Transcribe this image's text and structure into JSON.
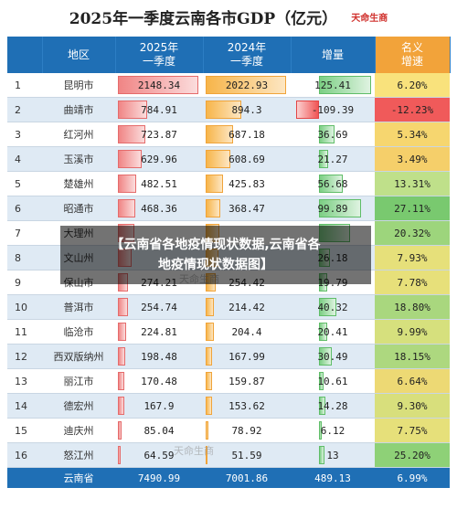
{
  "title": "2025年一季度云南各市GDP（亿元）",
  "brand": "天命生商",
  "watermark": "天命生商",
  "headers": [
    "地区",
    "2025年\n一季度",
    "2024年\n一季度",
    "增量",
    "名义\n增速"
  ],
  "rows": [
    {
      "rank": "1",
      "city": "昆明市",
      "v2025": "2148.34",
      "v2024": "2022.93",
      "inc": "125.41",
      "rate": "6.20%"
    },
    {
      "rank": "2",
      "city": "曲靖市",
      "v2025": "784.91",
      "v2024": "894.3",
      "inc": "-109.39",
      "rate": "-12.23%"
    },
    {
      "rank": "3",
      "city": "红河州",
      "v2025": "723.87",
      "v2024": "687.18",
      "inc": "36.69",
      "rate": "5.34%"
    },
    {
      "rank": "4",
      "city": "玉溪市",
      "v2025": "629.96",
      "v2024": "608.69",
      "inc": "21.27",
      "rate": "3.49%"
    },
    {
      "rank": "5",
      "city": "楚雄州",
      "v2025": "482.51",
      "v2024": "425.83",
      "inc": "56.68",
      "rate": "13.31%"
    },
    {
      "rank": "6",
      "city": "昭通市",
      "v2025": "468.36",
      "v2024": "368.47",
      "inc": "99.89",
      "rate": "27.11%"
    },
    {
      "rank": "7",
      "city": "大理州",
      "v2025": "",
      "v2024": "",
      "inc": "",
      "rate": "20.32%"
    },
    {
      "rank": "8",
      "city": "文山州",
      "v2025": "",
      "v2024": "",
      "inc": "26.18",
      "rate": "7.93%"
    },
    {
      "rank": "9",
      "city": "保山市",
      "v2025": "274.21",
      "v2024": "254.42",
      "inc": "19.79",
      "rate": "7.78%"
    },
    {
      "rank": "10",
      "city": "普洱市",
      "v2025": "254.74",
      "v2024": "214.42",
      "inc": "40.32",
      "rate": "18.80%"
    },
    {
      "rank": "11",
      "city": "临沧市",
      "v2025": "224.81",
      "v2024": "204.4",
      "inc": "20.41",
      "rate": "9.99%"
    },
    {
      "rank": "12",
      "city": "西双版纳州",
      "v2025": "198.48",
      "v2024": "167.99",
      "inc": "30.49",
      "rate": "18.15%"
    },
    {
      "rank": "13",
      "city": "丽江市",
      "v2025": "170.48",
      "v2024": "159.87",
      "inc": "10.61",
      "rate": "6.64%"
    },
    {
      "rank": "14",
      "city": "德宏州",
      "v2025": "167.9",
      "v2024": "153.62",
      "inc": "14.28",
      "rate": "9.30%"
    },
    {
      "rank": "15",
      "city": "迪庆州",
      "v2025": "85.04",
      "v2024": "78.92",
      "inc": "6.12",
      "rate": "7.75%"
    },
    {
      "rank": "16",
      "city": "怒江州",
      "v2025": "64.59",
      "v2024": "51.59",
      "inc": "13",
      "rate": "25.20%"
    }
  ],
  "bar_levels": {
    "v2025": [
      1.0,
      0.365,
      0.337,
      0.293,
      0.225,
      0.218,
      0.2,
      0.17,
      0.128,
      0.119,
      0.105,
      0.092,
      0.079,
      0.078,
      0.04,
      0.03
    ],
    "v2024": [
      1.0,
      0.442,
      0.34,
      0.301,
      0.21,
      0.182,
      0.17,
      0.16,
      0.126,
      0.106,
      0.101,
      0.083,
      0.079,
      0.076,
      0.039,
      0.026
    ],
    "inc": [
      1.0,
      -0.87,
      0.29,
      0.17,
      0.45,
      0.8,
      0.6,
      0.21,
      0.16,
      0.32,
      0.16,
      0.24,
      0.08,
      0.11,
      0.05,
      0.1
    ]
  },
  "rate_colors": [
    "#f9e27c",
    "#f05a5a",
    "#f6d66f",
    "#f5cf6a",
    "#bfe08a",
    "#79c96f",
    "#9dd57c",
    "#e6e07a",
    "#e7e07a",
    "#a9d77e",
    "#d6e07d",
    "#add87f",
    "#edd974",
    "#d8df7c",
    "#e6e07a",
    "#8ed177"
  ],
  "total": {
    "city": "云南省",
    "v2025": "7490.99",
    "v2024": "7001.86",
    "inc": "489.13",
    "rate": "6.99%"
  },
  "overlay": {
    "line1": "【云南省各地疫情现状数据,云南省各",
    "line2": "地疫情现状数据图】"
  }
}
